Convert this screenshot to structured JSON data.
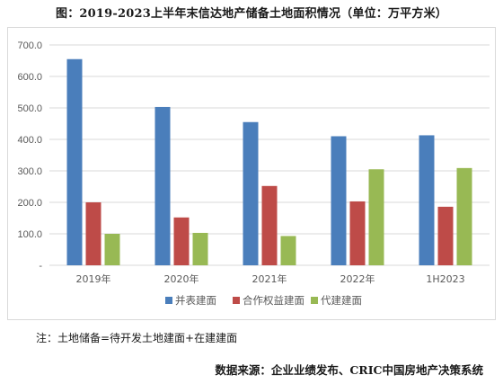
{
  "title": "图：2019-2023上半年末信达地产储备土地面积情况（单位：万平方米）",
  "note": "注：土地储备=待开发土地建面+在建建面",
  "source": "数据来源：企业业绩发布、CRIC中国房地产决策系统",
  "chart_data": {
    "type": "bar",
    "categories": [
      "2019年",
      "2020年",
      "2021年",
      "2022年",
      "1H2023"
    ],
    "series": [
      {
        "name": "并表建面",
        "values": [
          655,
          503,
          455,
          410,
          413
        ],
        "color": "#4a7ebb"
      },
      {
        "name": "合作权益建面",
        "values": [
          200,
          152,
          252,
          203,
          186
        ],
        "color": "#be4b48"
      },
      {
        "name": "代建建面",
        "values": [
          100,
          103,
          93,
          305,
          309
        ],
        "color": "#98b954"
      }
    ],
    "yticks": [
      "-",
      "100.0",
      "200.0",
      "300.0",
      "400.0",
      "500.0",
      "600.0",
      "700.0"
    ],
    "ylim": [
      0,
      700
    ],
    "grid": true,
    "legend": "bottom"
  }
}
